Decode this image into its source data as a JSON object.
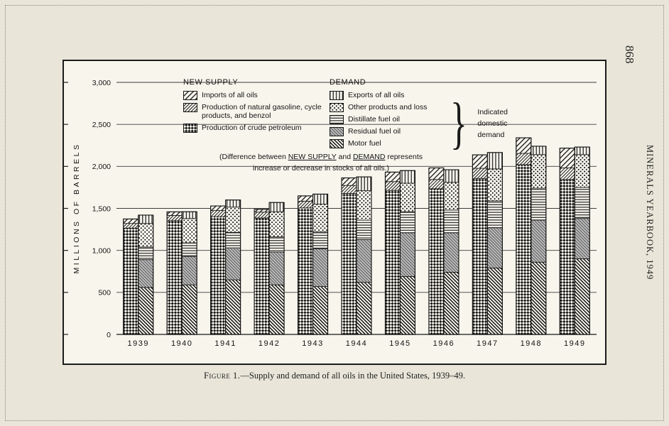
{
  "page": {
    "page_number": "868",
    "journal_side_text": "MINERALS YEARBOOK, 1949"
  },
  "caption": {
    "figure": "Figure 1.",
    "text": "—Supply and demand of all oils in the United States, 1939–49."
  },
  "legend": {
    "new_supply": {
      "title": "NEW SUPPLY",
      "items": [
        {
          "label": "Imports of all oils",
          "pattern": "imports"
        },
        {
          "label": "Production of natural gasoline, cycle products, and benzol",
          "pattern": "natgas"
        },
        {
          "label": "Production of crude petroleum",
          "pattern": "crude"
        }
      ]
    },
    "demand": {
      "title": "DEMAND",
      "items": [
        {
          "label": "Exports of all oils",
          "pattern": "exports"
        },
        {
          "label": "Other products and loss",
          "pattern": "other"
        },
        {
          "label": "Distillate fuel oil",
          "pattern": "distillate"
        },
        {
          "label": "Residual fuel oil",
          "pattern": "residual"
        },
        {
          "label": "Motor fuel",
          "pattern": "motor"
        }
      ]
    },
    "brace_label": [
      "Indicated",
      "domestic",
      "demand"
    ],
    "note": {
      "p1": "(Difference between ",
      "u1": "NEW SUPPLY",
      "p2": " and ",
      "u2": "DEMAND",
      "p3": " represents",
      "line2": "increase or decrease in stocks of all oils.)"
    }
  },
  "chart_data": {
    "type": "bar",
    "stacked": true,
    "title": "Supply and demand of all oils in the United States, 1939–49",
    "ylabel": "MILLIONS OF BARRELS",
    "ylim": [
      0,
      3000
    ],
    "ytick_interval": 500,
    "yticks": [
      {
        "v": 0,
        "label": "0"
      },
      {
        "v": 500,
        "label": "500"
      },
      {
        "v": 1000,
        "label": "1,000"
      },
      {
        "v": 1500,
        "label": "1,500"
      },
      {
        "v": 2000,
        "label": "2,000"
      },
      {
        "v": 2500,
        "label": "2,500"
      },
      {
        "v": 3000,
        "label": "3,000"
      }
    ],
    "categories": [
      "1939",
      "1940",
      "1941",
      "1942",
      "1943",
      "1944",
      "1945",
      "1946",
      "1947",
      "1948",
      "1949"
    ],
    "groups": [
      {
        "name": "NEW SUPPLY",
        "series": [
          {
            "name": "Production of crude petroleum",
            "pattern": "crude",
            "values": [
              1265,
              1353,
              1402,
              1386,
              1506,
              1678,
              1714,
              1734,
              1857,
              2020,
              1842
            ]
          },
          {
            "name": "Production of natural gasoline, cycle products, and benzol",
            "pattern": "natgas",
            "values": [
              56,
              63,
              72,
              70,
              80,
              95,
              105,
              110,
              120,
              135,
              140
            ]
          },
          {
            "name": "Imports of all oils",
            "pattern": "imports",
            "values": [
              53,
              43,
              55,
              33,
              63,
              90,
              113,
              138,
              160,
              185,
              235
            ]
          }
        ]
      },
      {
        "name": "DEMAND",
        "series": [
          {
            "name": "Motor fuel",
            "pattern": "motor",
            "values": [
              560,
              590,
              650,
              590,
              570,
              620,
              690,
              740,
              790,
              860,
              900
            ]
          },
          {
            "name": "Residual fuel oil",
            "pattern": "residual",
            "values": [
              330,
              340,
              380,
              390,
              450,
              510,
              520,
              470,
              480,
              500,
              480
            ]
          },
          {
            "name": "Distillate fuel oil",
            "pattern": "distillate",
            "values": [
              150,
              160,
              185,
              180,
              200,
              230,
              250,
              270,
              320,
              380,
              370
            ]
          },
          {
            "name": "Other products and loss",
            "pattern": "other",
            "values": [
              280,
              290,
              300,
              300,
              330,
              350,
              340,
              330,
              380,
              400,
              390
            ]
          },
          {
            "name": "Exports of all oils",
            "pattern": "exports",
            "values": [
              100,
              80,
              85,
              110,
              120,
              165,
              150,
              150,
              195,
              100,
              90
            ]
          }
        ]
      }
    ]
  }
}
